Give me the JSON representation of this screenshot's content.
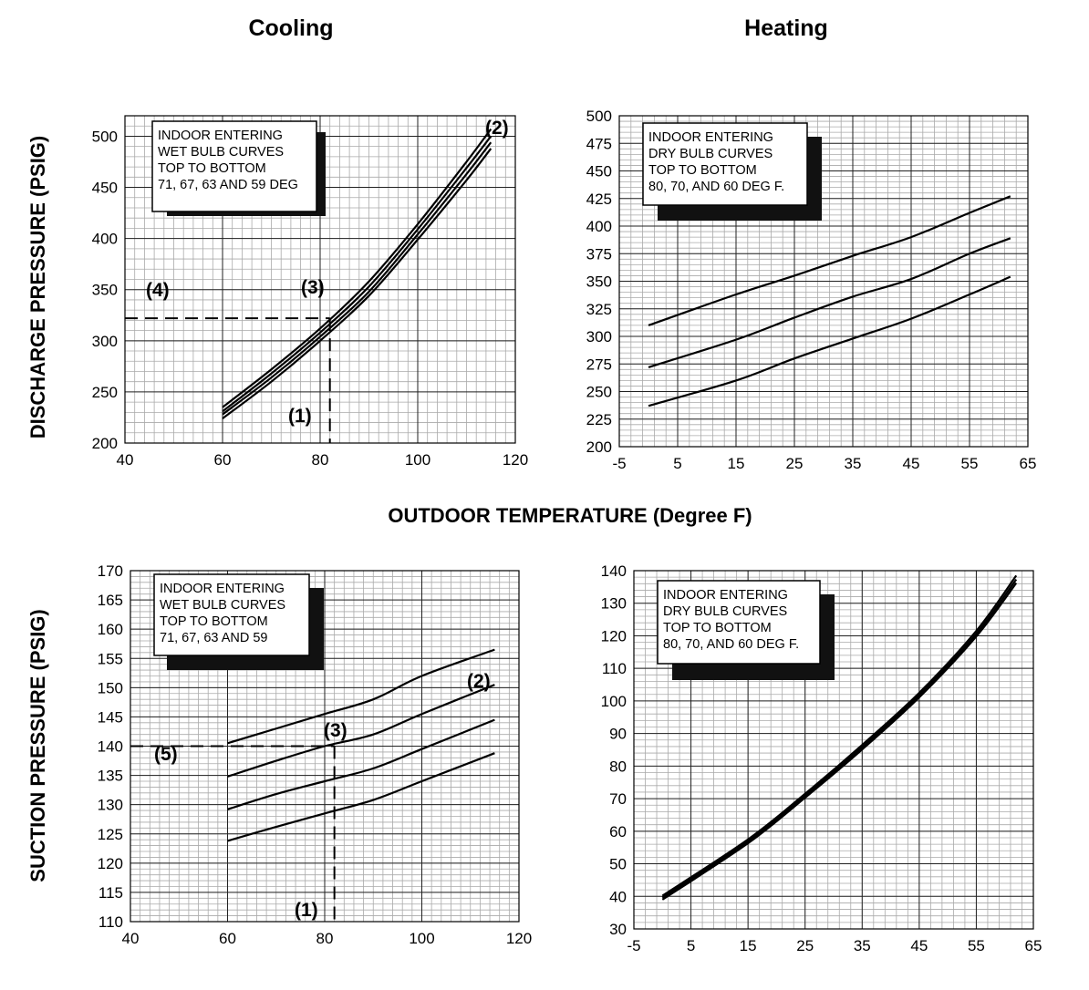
{
  "titles": {
    "cooling": "Cooling",
    "heating": "Heating"
  },
  "axis_labels": {
    "discharge": "DISCHARGE PRESSURE (PSIG)",
    "suction": "SUCTION PRESSURE (PSIG)",
    "outdoor": "OUTDOOR TEMPERATURE (Degree F)"
  },
  "chart_data": [
    {
      "id": "cooling-discharge",
      "type": "line",
      "title": "Cooling",
      "ylabel": "DISCHARGE PRESSURE (PSIG)",
      "xlabel": "OUTDOOR TEMPERATURE (Degree F)",
      "xlim": [
        40,
        120
      ],
      "ylim": [
        200,
        520
      ],
      "xticks": [
        40,
        60,
        80,
        100,
        120
      ],
      "yticks": [
        200,
        250,
        300,
        350,
        400,
        450,
        500
      ],
      "grid": true,
      "legend_text": [
        "INDOOR ENTERING",
        "WET BULB CURVES",
        "TOP TO BOTTOM",
        "71, 67, 63 AND 59 DEG"
      ],
      "x": [
        60,
        70,
        80,
        90,
        100,
        110,
        115
      ],
      "series": [
        {
          "values": [
            235,
            272,
            312,
            358,
            414,
            475,
            507
          ]
        },
        {
          "values": [
            231,
            268,
            308,
            353,
            409,
            469,
            500
          ]
        },
        {
          "values": [
            228,
            264,
            304,
            348,
            404,
            463,
            494
          ]
        },
        {
          "values": [
            224,
            260,
            300,
            344,
            399,
            457,
            488
          ]
        }
      ],
      "reference": {
        "x": 82,
        "y": 322
      },
      "annotations": [
        "(1)",
        "(2)",
        "(3)",
        "(4)"
      ]
    },
    {
      "id": "heating-discharge",
      "type": "line",
      "title": "Heating",
      "xlim": [
        -5,
        65
      ],
      "ylim": [
        200,
        500
      ],
      "xticks": [
        -5,
        5,
        15,
        25,
        35,
        45,
        55,
        65
      ],
      "yticks": [
        200,
        225,
        250,
        275,
        300,
        325,
        350,
        375,
        400,
        425,
        450,
        475,
        500
      ],
      "grid": true,
      "legend_text": [
        "INDOOR ENTERING",
        "DRY BULB CURVES",
        "TOP TO BOTTOM",
        "80, 70, AND 60 DEG F."
      ],
      "x": [
        0,
        15,
        25,
        35,
        45,
        55,
        62
      ],
      "series": [
        {
          "values": [
            310,
            338,
            355,
            373,
            390,
            412,
            427
          ]
        },
        {
          "values": [
            272,
            297,
            317,
            336,
            352,
            375,
            389
          ]
        },
        {
          "values": [
            237,
            260,
            280,
            298,
            316,
            338,
            354
          ]
        }
      ],
      "annotations": []
    },
    {
      "id": "cooling-suction",
      "type": "line",
      "ylabel": "SUCTION PRESSURE (PSIG)",
      "xlim": [
        40,
        120
      ],
      "ylim": [
        110,
        170
      ],
      "xticks": [
        40,
        60,
        80,
        100,
        120
      ],
      "yticks": [
        110,
        115,
        120,
        125,
        130,
        135,
        140,
        145,
        150,
        155,
        160,
        165,
        170
      ],
      "grid": true,
      "legend_text": [
        "INDOOR ENTERING",
        "WET BULB CURVES",
        "TOP TO BOTTOM",
        "71, 67, 63 AND 59"
      ],
      "x": [
        60,
        70,
        80,
        90,
        100,
        115
      ],
      "series": [
        {
          "values": [
            140.5,
            143.0,
            145.5,
            148.0,
            152.0,
            156.5
          ]
        },
        {
          "values": [
            134.8,
            137.5,
            140.0,
            142.0,
            145.5,
            150.5
          ]
        },
        {
          "values": [
            129.2,
            131.8,
            134.0,
            136.2,
            139.5,
            144.5
          ]
        },
        {
          "values": [
            123.8,
            126.2,
            128.5,
            130.8,
            134.0,
            138.8
          ]
        }
      ],
      "reference": {
        "x": 82,
        "y": 140
      },
      "annotations": [
        "(1)",
        "(2)",
        "(3)",
        "(5)"
      ]
    },
    {
      "id": "heating-suction",
      "type": "line",
      "xlim": [
        -5,
        65
      ],
      "ylim": [
        30,
        140
      ],
      "xticks": [
        -5,
        5,
        15,
        25,
        35,
        45,
        55,
        65
      ],
      "yticks": [
        30,
        40,
        50,
        60,
        70,
        80,
        90,
        100,
        110,
        120,
        130,
        140
      ],
      "grid": true,
      "legend_text": [
        "INDOOR ENTERING",
        "DRY BULB CURVES",
        "TOP TO BOTTOM",
        "80, 70, AND 60 DEG F."
      ],
      "x": [
        0,
        15,
        25,
        35,
        45,
        55,
        62
      ],
      "series": [
        {
          "values": [
            40.2,
            57.5,
            71.5,
            86.5,
            102.5,
            121.5,
            138.5
          ]
        },
        {
          "values": [
            39.6,
            56.9,
            70.9,
            85.8,
            101.8,
            120.6,
            137.3
          ]
        },
        {
          "values": [
            39.0,
            56.3,
            70.3,
            85.1,
            101.1,
            119.8,
            136.2
          ]
        }
      ],
      "annotations": []
    }
  ]
}
